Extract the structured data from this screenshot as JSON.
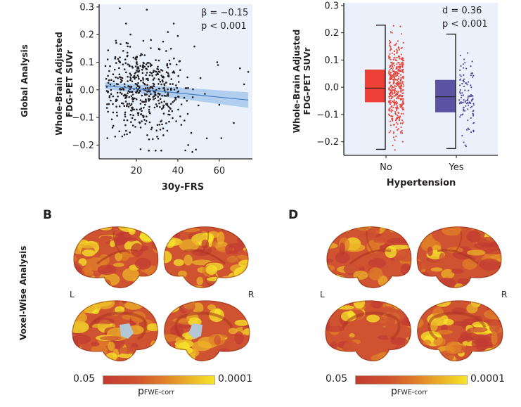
{
  "row_labels": {
    "global": "Global Analysis",
    "voxel": "Voxel-Wise Analysis"
  },
  "panels": {
    "B": {
      "letter": "B",
      "left_label": "L",
      "right_label": "R"
    },
    "D": {
      "letter": "D",
      "left_label": "L",
      "right_label": "R"
    }
  },
  "colorbar": {
    "min_label": "0.05",
    "max_label": "0.0001",
    "label_main": "p",
    "label_sub": "FWE-corr",
    "colors": [
      "#c23b32",
      "#cf5330",
      "#e07f28",
      "#ecb327",
      "#f5e52a"
    ]
  },
  "colors": {
    "plot_bg": "#eaf1fa",
    "scatter_point": "#231f20",
    "fit_line": "#4a7fc0",
    "fit_band": "#a8c8ec",
    "no_box": "#ee4036",
    "yes_box": "#5b52a3",
    "no_points": "#e8473c",
    "yes_points": "#574f9e"
  },
  "chart_data": [
    {
      "type": "scatter",
      "title": "",
      "xlabel": "30y-FRS",
      "ylabel": [
        "Whole-Brain Adjusted",
        "FDG-PET SUVr"
      ],
      "xlim": [
        2,
        76
      ],
      "ylim": [
        -0.25,
        0.31
      ],
      "xticks": [
        20,
        40,
        60
      ],
      "yticks": [
        -0.2,
        -0.1,
        0.0,
        0.1,
        0.2,
        0.3
      ],
      "ytick_labels": [
        "−0.2",
        "−0.1",
        "0.0",
        "0.1",
        "0.2",
        "0.3"
      ],
      "annotation": [
        "β = −0.15",
        "p < 0.001"
      ],
      "fit": {
        "x": [
          5,
          74
        ],
        "y": [
          0.015,
          -0.037
        ],
        "ci_half_width_start": 0.012,
        "ci_half_width_end": 0.028
      },
      "n_points": 520,
      "points_note": "dense cloud centered near x=25, y=0; x mostly 5-55, y mostly -0.15 to 0.15",
      "notable_points": [
        {
          "x": 12,
          "y": 0.295
        },
        {
          "x": 25,
          "y": 0.29
        },
        {
          "x": 15,
          "y": 0.24
        },
        {
          "x": 38,
          "y": 0.24
        },
        {
          "x": 40,
          "y": 0.195
        },
        {
          "x": 48,
          "y": 0.157
        },
        {
          "x": 59,
          "y": 0.1
        },
        {
          "x": 70,
          "y": 0.078
        },
        {
          "x": 74,
          "y": 0.065
        },
        {
          "x": 72,
          "y": 0.02
        },
        {
          "x": 67,
          "y": -0.12
        },
        {
          "x": 61,
          "y": -0.175
        },
        {
          "x": 6,
          "y": -0.175
        },
        {
          "x": 22,
          "y": -0.215
        },
        {
          "x": 26,
          "y": -0.22
        },
        {
          "x": 32,
          "y": -0.22
        },
        {
          "x": 45,
          "y": -0.2
        },
        {
          "x": 47,
          "y": -0.225
        }
      ]
    },
    {
      "type": "box",
      "xlabel": "Hypertension",
      "ylabel": [
        "Whole-Brain Adjusted",
        "FDG-PET SUVr"
      ],
      "categories": [
        "No",
        "Yes"
      ],
      "ylim": [
        -0.25,
        0.31
      ],
      "yticks": [
        -0.2,
        -0.1,
        0.0,
        0.1,
        0.2,
        0.3
      ],
      "ytick_labels": [
        "−0.2",
        "−0.1",
        "0.0",
        "0.1",
        "0.2",
        "0.3"
      ],
      "annotation": [
        "d = 0.36",
        "p < 0.001"
      ],
      "series": [
        {
          "name": "No",
          "q1": -0.055,
          "median": -0.003,
          "q3": 0.065,
          "whisker_low": -0.228,
          "whisker_high": 0.228,
          "n_points": 420,
          "point_range": [
            -0.23,
            0.295
          ]
        },
        {
          "name": "Yes",
          "q1": -0.092,
          "median": -0.035,
          "q3": 0.027,
          "whisker_low": -0.225,
          "whisker_high": 0.195,
          "n_points": 110,
          "point_range": [
            -0.225,
            0.21
          ]
        }
      ]
    }
  ]
}
